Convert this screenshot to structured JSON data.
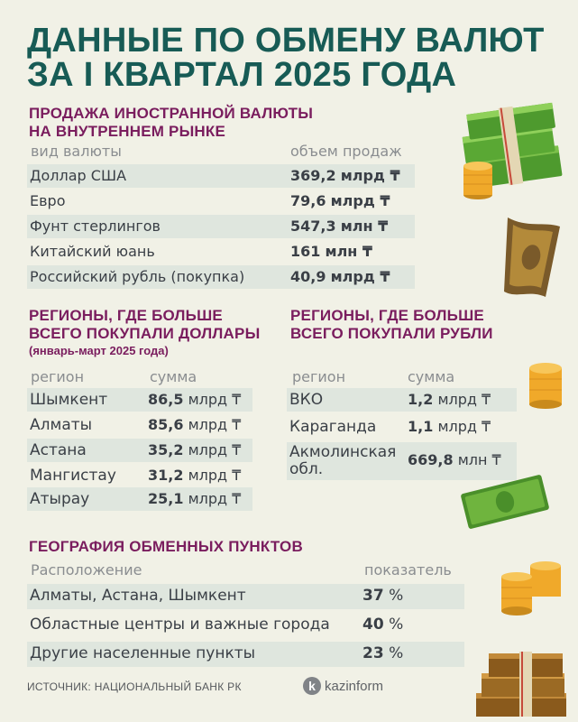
{
  "title": {
    "line1": "ДАННЫЕ ПО ОБМЕНУ ВАЛЮТ",
    "line2": "ЗА I КВАРТАЛ 2025 ГОДА"
  },
  "sales": {
    "title_line1": "ПРОДАЖА ИНОСТРАННОЙ ВАЛЮТЫ",
    "title_line2": "НА ВНУТРЕННЕМ РЫНКЕ",
    "col_currency": "вид валюты",
    "col_volume": "объем продаж",
    "rows": [
      {
        "label": "Доллар США",
        "value": "369,2",
        "unit": "млрд ₸"
      },
      {
        "label": "Евро",
        "value": "79,6",
        "unit": "млрд ₸"
      },
      {
        "label": "Фунт стерлингов",
        "value": "547,3",
        "unit": "млн ₸"
      },
      {
        "label": "Китайский юань",
        "value": "161",
        "unit": "млн ₸"
      },
      {
        "label": "Российский рубль (покупка)",
        "value": "40,9",
        "unit": "млрд ₸"
      }
    ]
  },
  "dollar_regions": {
    "title_line1": "РЕГИОНЫ, ГДЕ БОЛЬШЕ",
    "title_line2": "ВСЕГО ПОКУПАЛИ ДОЛЛАРЫ",
    "note": "(январь-март 2025 года)",
    "col_region": "регион",
    "col_sum": "сумма",
    "rows": [
      {
        "label": "Шымкент",
        "value": "86,5",
        "unit": "млрд ₸"
      },
      {
        "label": "Алматы",
        "value": "85,6",
        "unit": "млрд ₸"
      },
      {
        "label": "Астана",
        "value": "35,2",
        "unit": "млрд ₸"
      },
      {
        "label": "Мангистау",
        "value": "31,2",
        "unit": "млрд ₸"
      },
      {
        "label": "Атырау",
        "value": "25,1",
        "unit": "млрд ₸"
      }
    ]
  },
  "ruble_regions": {
    "title_line1": "РЕГИОНЫ, ГДЕ БОЛЬШЕ",
    "title_line2": "ВСЕГО ПОКУПАЛИ РУБЛИ",
    "col_region": "регион",
    "col_sum": "сумма",
    "rows": [
      {
        "label": "ВКО",
        "value": "1,2",
        "unit": "млрд ₸"
      },
      {
        "label": "Караганда",
        "value": "1,1",
        "unit": "млрд ₸"
      },
      {
        "label_line1": "Акмолинская",
        "label_line2": "обл.",
        "value": "669,8",
        "unit": "млн ₸"
      }
    ]
  },
  "geography": {
    "title": "ГЕОГРАФИЯ ОБМЕННЫХ ПУНКТОВ",
    "col_location": "Расположение",
    "col_indicator": "показатель",
    "rows": [
      {
        "label": "Алматы, Астана, Шымкент",
        "value": "37",
        "unit": "%"
      },
      {
        "label": "Областные центры и важные города",
        "value": "40",
        "unit": "%"
      },
      {
        "label": "Другие населенные пункты",
        "value": "23",
        "unit": "%"
      }
    ]
  },
  "footer": {
    "source": "ИСТОЧНИК: НАЦИОНАЛЬНЫЙ БАНК РК",
    "logo_letter": "k",
    "logo_text": "kazinform"
  },
  "colors": {
    "title": "#175b55",
    "section": "#7a1d5e",
    "row_bg": "#dfe6de",
    "background": "#f1f1e6"
  },
  "decorations": [
    "money-stack-icon",
    "banknote-icon",
    "coins-icon"
  ]
}
